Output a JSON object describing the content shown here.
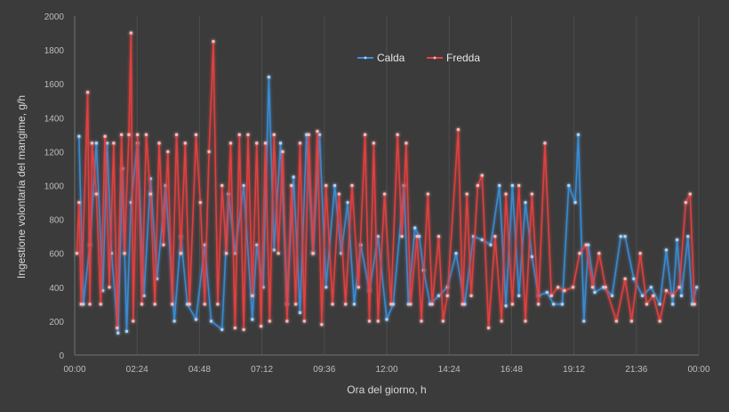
{
  "chart_data": {
    "type": "line",
    "title": "",
    "xlabel": "Ora del giorno, h",
    "ylabel": "Ingestione volontaria del mangime, g/h",
    "ylim": [
      0,
      2000
    ],
    "yticks": [
      "0",
      "200",
      "400",
      "600",
      "800",
      "1000",
      "1200",
      "1400",
      "1600",
      "1800",
      "2000"
    ],
    "xlim": [
      "00:00",
      "24:00"
    ],
    "xticks": [
      "00:00",
      "02:24",
      "04:48",
      "07:12",
      "09:36",
      "12:00",
      "14:24",
      "16:48",
      "19:12",
      "21:36",
      "00:00"
    ],
    "grid": "vertical",
    "legend_position": "top-center",
    "series": [
      {
        "name": "Calda",
        "color": "#3a8fd9",
        "points": [
          [
            "00:10",
            1290
          ],
          [
            "00:20",
            300
          ],
          [
            "00:35",
            650
          ],
          [
            "00:50",
            1250
          ],
          [
            "01:05",
            380
          ],
          [
            "01:15",
            1250
          ],
          [
            "01:25",
            600
          ],
          [
            "01:40",
            130
          ],
          [
            "01:50",
            1100
          ],
          [
            "02:00",
            140
          ],
          [
            "02:10",
            900
          ],
          [
            "02:25",
            1250
          ],
          [
            "02:40",
            350
          ],
          [
            "02:55",
            1040
          ],
          [
            "03:10",
            450
          ],
          [
            "03:30",
            1000
          ],
          [
            "03:50",
            200
          ],
          [
            "04:05",
            700
          ],
          [
            "04:20",
            300
          ],
          [
            "04:40",
            210
          ],
          [
            "05:00",
            650
          ],
          [
            "05:15",
            200
          ],
          [
            "05:40",
            150
          ],
          [
            "05:55",
            950
          ],
          [
            "06:10",
            600
          ],
          [
            "06:30",
            1000
          ],
          [
            "06:50",
            210
          ],
          [
            "07:00",
            650
          ],
          [
            "07:15",
            400
          ],
          [
            "07:28",
            1640
          ],
          [
            "07:40",
            620
          ],
          [
            "07:55",
            1250
          ],
          [
            "08:10",
            300
          ],
          [
            "08:25",
            1050
          ],
          [
            "08:40",
            250
          ],
          [
            "08:55",
            1300
          ],
          [
            "09:10",
            600
          ],
          [
            "09:25",
            1300
          ],
          [
            "09:40",
            400
          ],
          [
            "10:00",
            1000
          ],
          [
            "10:15",
            600
          ],
          [
            "10:30",
            900
          ],
          [
            "10:45",
            300
          ],
          [
            "11:00",
            650
          ],
          [
            "11:20",
            380
          ],
          [
            "11:40",
            700
          ],
          [
            "12:00",
            210
          ],
          [
            "12:15",
            300
          ],
          [
            "12:40",
            1000
          ],
          [
            "12:50",
            300
          ],
          [
            "13:05",
            750
          ],
          [
            "13:15",
            700
          ],
          [
            "13:25",
            500
          ],
          [
            "13:40",
            300
          ],
          [
            "14:00",
            350
          ],
          [
            "14:20",
            400
          ],
          [
            "14:40",
            600
          ],
          [
            "15:00",
            300
          ],
          [
            "15:20",
            700
          ],
          [
            "15:40",
            680
          ],
          [
            "16:00",
            650
          ],
          [
            "16:20",
            1000
          ],
          [
            "16:35",
            290
          ],
          [
            "16:50",
            1000
          ],
          [
            "17:05",
            350
          ],
          [
            "17:20",
            900
          ],
          [
            "17:35",
            580
          ],
          [
            "17:50",
            350
          ],
          [
            "18:10",
            370
          ],
          [
            "18:25",
            300
          ],
          [
            "18:45",
            300
          ],
          [
            "19:00",
            1000
          ],
          [
            "19:15",
            900
          ],
          [
            "19:22",
            1300
          ],
          [
            "19:35",
            200
          ],
          [
            "19:45",
            650
          ],
          [
            "20:00",
            370
          ],
          [
            "20:20",
            400
          ],
          [
            "20:40",
            350
          ],
          [
            "21:00",
            700
          ],
          [
            "21:10",
            700
          ],
          [
            "21:30",
            450
          ],
          [
            "21:50",
            350
          ],
          [
            "22:10",
            400
          ],
          [
            "22:30",
            300
          ],
          [
            "22:45",
            620
          ],
          [
            "23:00",
            300
          ],
          [
            "23:10",
            680
          ],
          [
            "23:20",
            350
          ],
          [
            "23:35",
            700
          ],
          [
            "23:45",
            300
          ],
          [
            "23:55",
            400
          ]
        ]
      },
      {
        "name": "Fredda",
        "color": "#e8403f",
        "points": [
          [
            "00:05",
            600
          ],
          [
            "00:10",
            900
          ],
          [
            "00:15",
            300
          ],
          [
            "00:30",
            1550
          ],
          [
            "00:35",
            300
          ],
          [
            "00:40",
            1250
          ],
          [
            "00:50",
            950
          ],
          [
            "01:00",
            300
          ],
          [
            "01:10",
            1290
          ],
          [
            "01:20",
            400
          ],
          [
            "01:30",
            1250
          ],
          [
            "01:38",
            160
          ],
          [
            "01:48",
            1300
          ],
          [
            "01:55",
            600
          ],
          [
            "02:05",
            1300
          ],
          [
            "02:10",
            1900
          ],
          [
            "02:15",
            200
          ],
          [
            "02:25",
            1300
          ],
          [
            "02:35",
            300
          ],
          [
            "02:45",
            1300
          ],
          [
            "02:55",
            950
          ],
          [
            "03:05",
            300
          ],
          [
            "03:15",
            1250
          ],
          [
            "03:25",
            650
          ],
          [
            "03:35",
            1200
          ],
          [
            "03:45",
            300
          ],
          [
            "03:55",
            1300
          ],
          [
            "04:05",
            600
          ],
          [
            "04:15",
            1250
          ],
          [
            "04:25",
            300
          ],
          [
            "04:40",
            1300
          ],
          [
            "04:50",
            900
          ],
          [
            "05:00",
            300
          ],
          [
            "05:10",
            1200
          ],
          [
            "05:20",
            1850
          ],
          [
            "05:30",
            300
          ],
          [
            "05:40",
            1000
          ],
          [
            "05:50",
            600
          ],
          [
            "06:00",
            1250
          ],
          [
            "06:10",
            160
          ],
          [
            "06:20",
            1300
          ],
          [
            "06:30",
            150
          ],
          [
            "06:40",
            1300
          ],
          [
            "06:50",
            350
          ],
          [
            "07:00",
            1250
          ],
          [
            "07:10",
            170
          ],
          [
            "07:20",
            1250
          ],
          [
            "07:30",
            200
          ],
          [
            "07:40",
            1300
          ],
          [
            "07:50",
            600
          ],
          [
            "08:00",
            1200
          ],
          [
            "08:10",
            200
          ],
          [
            "08:20",
            1000
          ],
          [
            "08:30",
            300
          ],
          [
            "08:40",
            1250
          ],
          [
            "08:50",
            200
          ],
          [
            "09:00",
            1300
          ],
          [
            "09:10",
            600
          ],
          [
            "09:20",
            1320
          ],
          [
            "09:30",
            180
          ],
          [
            "09:40",
            1000
          ],
          [
            "09:55",
            300
          ],
          [
            "10:10",
            950
          ],
          [
            "10:25",
            300
          ],
          [
            "10:40",
            1000
          ],
          [
            "10:55",
            400
          ],
          [
            "11:10",
            1300
          ],
          [
            "11:20",
            200
          ],
          [
            "11:30",
            1250
          ],
          [
            "11:40",
            200
          ],
          [
            "11:55",
            950
          ],
          [
            "12:10",
            300
          ],
          [
            "12:25",
            1300
          ],
          [
            "12:35",
            700
          ],
          [
            "12:45",
            1250
          ],
          [
            "12:55",
            300
          ],
          [
            "13:10",
            700
          ],
          [
            "13:20",
            200
          ],
          [
            "13:35",
            950
          ],
          [
            "13:45",
            300
          ],
          [
            "14:00",
            700
          ],
          [
            "14:10",
            200
          ],
          [
            "14:20",
            350
          ],
          [
            "14:45",
            1330
          ],
          [
            "14:55",
            300
          ],
          [
            "15:05",
            950
          ],
          [
            "15:15",
            350
          ],
          [
            "15:30",
            1000
          ],
          [
            "15:40",
            1060
          ],
          [
            "15:55",
            160
          ],
          [
            "16:10",
            700
          ],
          [
            "16:25",
            200
          ],
          [
            "16:35",
            950
          ],
          [
            "16:50",
            300
          ],
          [
            "17:05",
            1000
          ],
          [
            "17:20",
            200
          ],
          [
            "17:35",
            950
          ],
          [
            "17:50",
            300
          ],
          [
            "18:05",
            1250
          ],
          [
            "18:20",
            350
          ],
          [
            "18:35",
            400
          ],
          [
            "18:50",
            380
          ],
          [
            "19:10",
            400
          ],
          [
            "19:25",
            600
          ],
          [
            "19:40",
            650
          ],
          [
            "19:55",
            400
          ],
          [
            "20:10",
            600
          ],
          [
            "20:25",
            400
          ],
          [
            "20:50",
            200
          ],
          [
            "21:10",
            450
          ],
          [
            "21:25",
            200
          ],
          [
            "21:45",
            600
          ],
          [
            "22:00",
            300
          ],
          [
            "22:15",
            350
          ],
          [
            "22:30",
            200
          ],
          [
            "22:45",
            380
          ],
          [
            "23:00",
            350
          ],
          [
            "23:15",
            400
          ],
          [
            "23:30",
            900
          ],
          [
            "23:40",
            950
          ],
          [
            "23:50",
            300
          ]
        ]
      }
    ]
  }
}
